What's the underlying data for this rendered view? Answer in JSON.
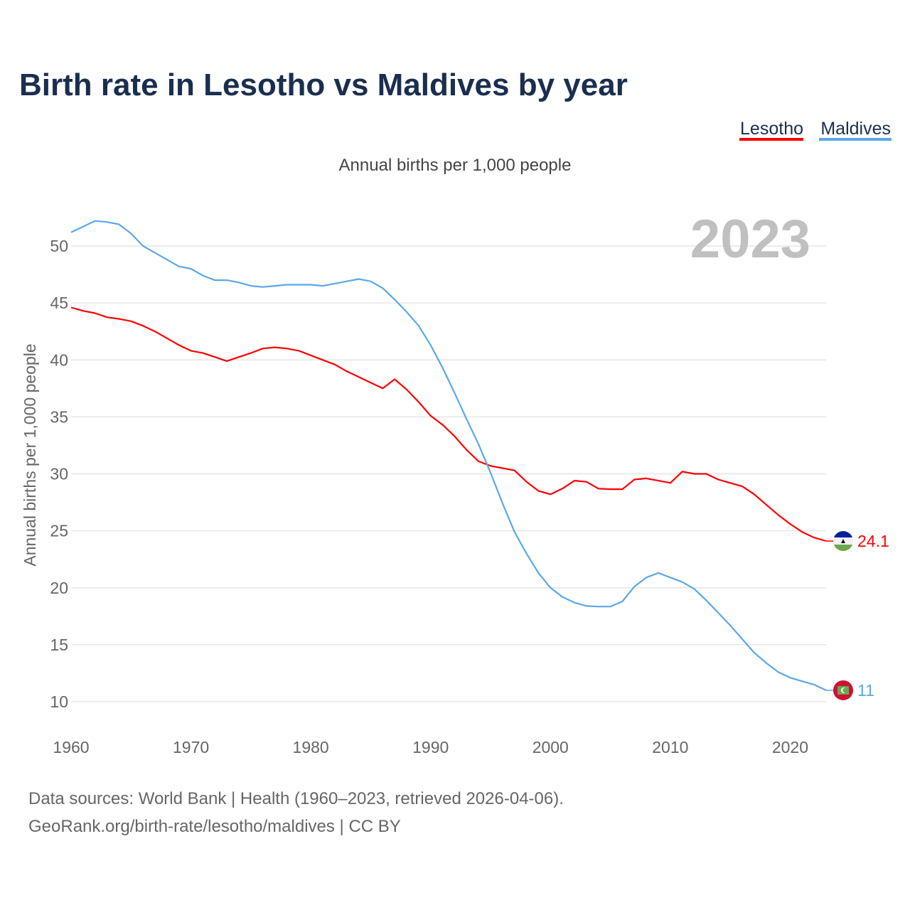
{
  "chart_data": {
    "type": "line",
    "title": "Birth rate in Lesotho vs Maldives by year",
    "subtitle": "Annual births per 1,000 people",
    "ylabel": "Annual births per 1,000 people",
    "xlabel": "",
    "current_year": "2023",
    "xlim": [
      1960,
      2023
    ],
    "ylim": [
      10,
      50
    ],
    "grid": true,
    "legend_position": "top-right",
    "x_ticks": [
      1960,
      1970,
      1980,
      1990,
      2000,
      2010,
      2020
    ],
    "y_ticks": [
      10,
      15,
      20,
      25,
      30,
      35,
      40,
      45,
      50
    ],
    "x": [
      1960,
      1961,
      1962,
      1963,
      1964,
      1965,
      1966,
      1967,
      1968,
      1969,
      1970,
      1971,
      1972,
      1973,
      1974,
      1975,
      1976,
      1977,
      1978,
      1979,
      1980,
      1981,
      1982,
      1983,
      1984,
      1985,
      1986,
      1987,
      1988,
      1989,
      1990,
      1991,
      1992,
      1993,
      1994,
      1995,
      1996,
      1997,
      1998,
      1999,
      2000,
      2001,
      2002,
      2003,
      2004,
      2005,
      2006,
      2007,
      2008,
      2009,
      2010,
      2011,
      2012,
      2013,
      2014,
      2015,
      2016,
      2017,
      2018,
      2019,
      2020,
      2021,
      2022,
      2023
    ],
    "series": [
      {
        "name": "Lesotho",
        "color": "#ff0000",
        "end_label": "24.1",
        "values": [
          44.6,
          44.3,
          44.1,
          43.75,
          43.6,
          43.4,
          43.0,
          42.5,
          41.9,
          41.3,
          40.8,
          40.6,
          40.25,
          39.9,
          40.25,
          40.6,
          41.0,
          41.1,
          41.0,
          40.8,
          40.4,
          40.0,
          39.6,
          39.0,
          38.5,
          38.0,
          37.5,
          38.3,
          37.4,
          36.3,
          35.1,
          34.3,
          33.3,
          32.1,
          31.1,
          30.7,
          30.5,
          30.3,
          29.3,
          28.5,
          28.2,
          28.7,
          29.4,
          29.3,
          28.7,
          28.65,
          28.65,
          29.5,
          29.6,
          29.4,
          29.2,
          30.2,
          30.0,
          30.0,
          29.5,
          29.2,
          28.9,
          28.2,
          27.3,
          26.4,
          25.6,
          24.9,
          24.4,
          24.1
        ]
      },
      {
        "name": "Maldives",
        "color": "#5aa8ea",
        "end_label": "11",
        "values": [
          51.2,
          51.7,
          52.2,
          52.1,
          51.9,
          51.1,
          50.0,
          49.4,
          48.8,
          48.2,
          48.0,
          47.4,
          47.0,
          47.0,
          46.8,
          46.5,
          46.4,
          46.5,
          46.6,
          46.6,
          46.6,
          46.5,
          46.7,
          46.9,
          47.1,
          46.9,
          46.3,
          45.3,
          44.2,
          43.0,
          41.3,
          39.3,
          37.1,
          34.8,
          32.6,
          30.1,
          27.4,
          24.9,
          23.0,
          21.3,
          20.0,
          19.2,
          18.7,
          18.4,
          18.35,
          18.35,
          18.8,
          20.1,
          20.9,
          21.3,
          20.9,
          20.5,
          19.9,
          18.9,
          17.8,
          16.7,
          15.5,
          14.3,
          13.4,
          12.6,
          12.1,
          11.8,
          11.5,
          11.0
        ]
      }
    ]
  },
  "footer": {
    "line1": "Data sources: World Bank | Health (1960–2023, retrieved 2026-04-06).",
    "line2": "GeoRank.org/birth-rate/lesotho/maldives | CC BY"
  }
}
